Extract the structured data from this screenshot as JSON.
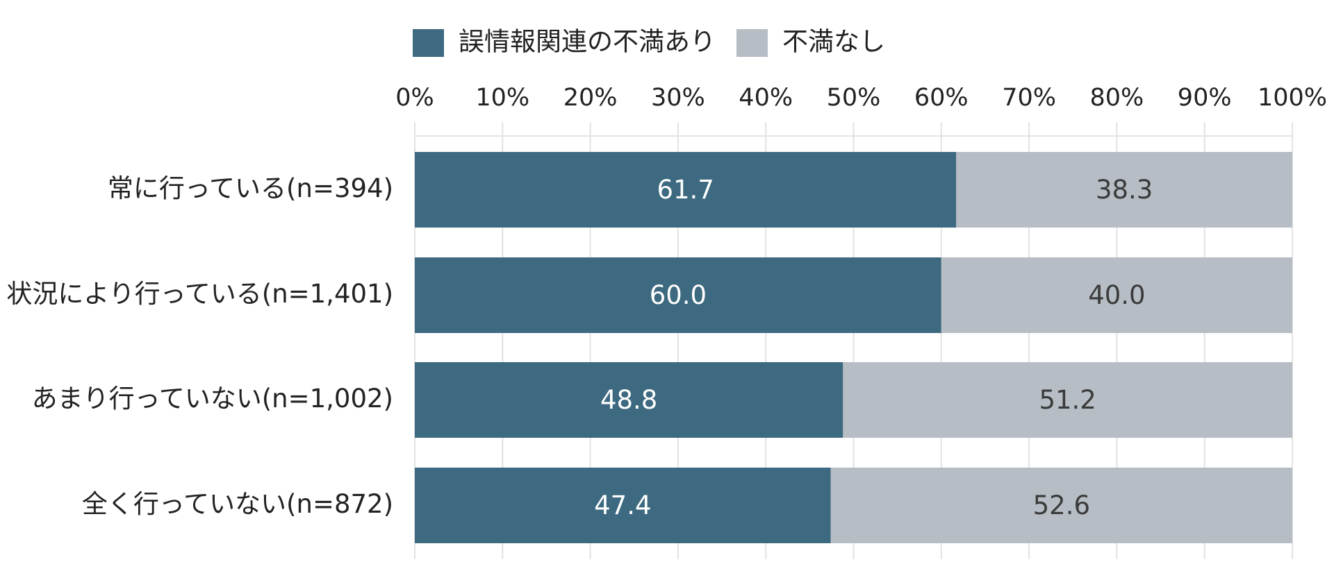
{
  "chart_data": {
    "type": "bar",
    "orientation": "horizontal",
    "stacked": true,
    "categories": [
      "常に行っている(n=394)",
      "状況により行っている(n=1,401)",
      "あまり行っていない(n=1,002)",
      "全く行っていない(n=872)"
    ],
    "series": [
      {
        "name": "誤情報関連の不満あり",
        "values": [
          61.7,
          60.0,
          48.8,
          47.4
        ],
        "labels": [
          "61.7",
          "60.0",
          "48.8",
          "47.4"
        ],
        "color": "#3d6a80",
        "label_color": "#ffffff"
      },
      {
        "name": "不満なし",
        "values": [
          38.3,
          40.0,
          51.2,
          52.6
        ],
        "labels": [
          "38.3",
          "40.0",
          "51.2",
          "52.6"
        ],
        "color": "#b6bdc5",
        "label_color": "#3a3a3a"
      }
    ],
    "xlim": [
      0,
      100
    ],
    "ticks": [
      "0%",
      "10%",
      "20%",
      "30%",
      "40%",
      "50%",
      "60%",
      "70%",
      "80%",
      "90%",
      "100%"
    ],
    "x_axis_position": "top",
    "legend_position": "top",
    "grid": true,
    "grid_color": "#e2e2e2"
  }
}
